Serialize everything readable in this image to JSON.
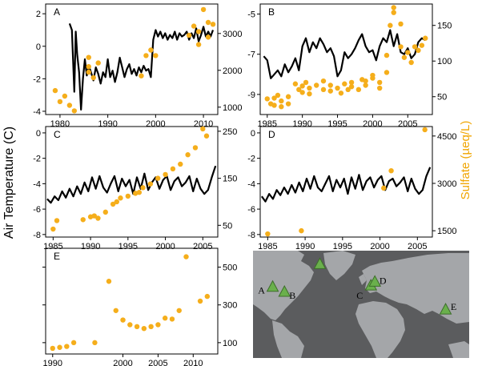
{
  "y_label_left": "Air Temperature (C)",
  "y_label_right": "Sulfate (µeq/L)",
  "colors": {
    "temperature": "#000000",
    "sulfate": "#f5ae1b",
    "map_land": "#a7a9ac",
    "map_ocean": "#58595b",
    "site_marker": "#6ab04c"
  },
  "chart_data": [
    {
      "type": "line+scatter",
      "panel": "A",
      "xlim": [
        1977,
        2013
      ],
      "x_ticks": [
        1980,
        1990,
        2000,
        2010
      ],
      "temp_ylim": [
        -4.2,
        2.6
      ],
      "temp_ticks": [
        -4,
        -2,
        0,
        2
      ],
      "sulfate_ylim": [
        800,
        3800
      ],
      "sulfate_ticks": [
        1000,
        2000,
        3000
      ],
      "temperature": {
        "x": [
          1982,
          1982.5,
          1983,
          1983.3,
          1983.6,
          1984,
          1984.4,
          1984.8,
          1985.2,
          1985.6,
          1986,
          1986.5,
          1987,
          1987.5,
          1988,
          1988.5,
          1989,
          1989.5,
          1990,
          1990.5,
          1991,
          1991.5,
          1992,
          1992.5,
          1993,
          1993.5,
          1994,
          1994.5,
          1995,
          1995.5,
          1996,
          1996.5,
          1997,
          1997.5,
          1998,
          1998.5,
          1999,
          1999.5,
          2000,
          2000.5,
          2001,
          2001.5,
          2002,
          2002.5,
          2003,
          2003.5,
          2004,
          2004.5,
          2005,
          2005.5,
          2006,
          2006.5,
          2007,
          2007.5,
          2008,
          2008.5,
          2009,
          2009.5,
          2010,
          2010.5,
          2011,
          2011.5,
          2012
        ],
        "y": [
          1.4,
          1.0,
          -2.8,
          0.9,
          -0.5,
          -1.6,
          -3.9,
          -2.0,
          -0.8,
          -1.8,
          -1.2,
          -1.6,
          -2.1,
          -1.3,
          -1.7,
          -2.3,
          -1.6,
          -1.9,
          -0.8,
          -1.9,
          -1.5,
          -2.2,
          -1.6,
          -0.7,
          -1.3,
          -1.9,
          -1.4,
          -1.1,
          -1.7,
          -1.4,
          -1.8,
          -1.3,
          -1.6,
          -1.2,
          -1.5,
          -1.4,
          -1.9,
          0.4,
          1.0,
          0.6,
          0.9,
          0.5,
          0.8,
          0.4,
          0.7,
          0.5,
          0.9,
          0.4,
          0.8,
          0.6,
          0.7,
          0.9,
          0.4,
          0.8,
          0.5,
          1.1,
          0.3,
          0.7,
          1.2,
          0.6,
          0.9,
          0.6,
          1.0
        ]
      },
      "sulfate": {
        "x": [
          1979,
          1980,
          1981,
          1982,
          1983,
          1986,
          1986,
          1986,
          1987,
          1988,
          1997,
          1998,
          1999,
          2000,
          2007,
          2008,
          2009,
          2009,
          2010,
          2011,
          2011,
          2012
        ],
        "y": [
          1450,
          1150,
          1300,
          1050,
          900,
          2350,
          2100,
          1950,
          1800,
          2200,
          1850,
          2400,
          2550,
          2400,
          2950,
          3200,
          3050,
          2700,
          3650,
          3300,
          2900,
          3250
        ]
      }
    },
    {
      "type": "line+scatter",
      "panel": "B",
      "xlim": [
        1984,
        2008.5
      ],
      "x_ticks": [
        1985,
        1990,
        1995,
        2000,
        2005
      ],
      "temp_ylim": [
        -10,
        -4.5
      ],
      "temp_ticks": [
        -9,
        -7,
        -5
      ],
      "sulfate_ylim": [
        25,
        180
      ],
      "sulfate_ticks": [
        50,
        100,
        150
      ],
      "temperature": {
        "x": [
          1984.5,
          1985,
          1985.5,
          1986,
          1986.5,
          1987,
          1987.5,
          1988,
          1988.5,
          1989,
          1989.5,
          1990,
          1990.5,
          1991,
          1991.5,
          1992,
          1992.5,
          1993,
          1993.5,
          1994,
          1994.5,
          1995,
          1995.5,
          1996,
          1996.5,
          1997,
          1997.5,
          1998,
          1998.5,
          1999,
          1999.5,
          2000,
          2000.5,
          2001,
          2001.5,
          2002,
          2002.5,
          2003,
          2003.5,
          2004,
          2004.5,
          2005,
          2005.5,
          2006,
          2006.5,
          2007,
          2007.5
        ],
        "y": [
          -7.1,
          -7.3,
          -8.2,
          -8.0,
          -7.8,
          -8.1,
          -7.5,
          -7.9,
          -7.6,
          -7.2,
          -7.8,
          -6.6,
          -6.2,
          -6.9,
          -6.4,
          -6.7,
          -6.2,
          -6.5,
          -6.9,
          -6.7,
          -7.1,
          -8.1,
          -7.8,
          -6.9,
          -7.2,
          -7.0,
          -6.7,
          -6.3,
          -6.0,
          -6.6,
          -6.9,
          -6.8,
          -7.3,
          -6.6,
          -6.2,
          -6.4,
          -5.8,
          -6.6,
          -6.0,
          -6.9,
          -7.0,
          -6.7,
          -7.2,
          -7.0,
          -6.4,
          -6.2,
          -6.3
        ]
      },
      "sulfate": {
        "x": [
          1985,
          1985.5,
          1986,
          1986,
          1986.5,
          1987,
          1987,
          1988,
          1988,
          1989,
          1989.5,
          1990,
          1990,
          1990.5,
          1991,
          1991,
          1992,
          1993,
          1993,
          1994,
          1994,
          1995,
          1995.5,
          1996,
          1996.5,
          1997,
          1997,
          1998,
          1998.5,
          1999,
          1999,
          2000,
          2000,
          2001,
          2001,
          2002,
          2002,
          2002.5,
          2003,
          2003,
          2004,
          2004,
          2004.5,
          2005,
          2005.5,
          2006,
          2006.5,
          2007,
          2007.5
        ],
        "y": [
          47,
          40,
          48,
          38,
          52,
          44,
          36,
          50,
          40,
          68,
          60,
          65,
          56,
          70,
          62,
          54,
          66,
          60,
          72,
          58,
          66,
          62,
          55,
          68,
          60,
          70,
          64,
          60,
          74,
          66,
          72,
          76,
          80,
          62,
          70,
          84,
          108,
          150,
          175,
          168,
          152,
          120,
          105,
          112,
          98,
          120,
          115,
          122,
          132
        ]
      }
    },
    {
      "type": "line+scatter",
      "panel": "C",
      "xlim": [
        1984,
        2007
      ],
      "x_ticks": [
        1985,
        1990,
        1995,
        2000,
        2005
      ],
      "temp_ylim": [
        -8.2,
        0.5
      ],
      "temp_ticks": [
        -8,
        -6,
        -4,
        -2,
        0
      ],
      "sulfate_ylim": [
        25,
        260
      ],
      "sulfate_ticks": [
        50,
        150,
        250
      ],
      "temperature": {
        "x": [
          1984.2,
          1984.7,
          1985.2,
          1985.7,
          1986.2,
          1986.7,
          1987.2,
          1987.7,
          1988.2,
          1988.7,
          1989.2,
          1989.7,
          1990.2,
          1990.7,
          1991.2,
          1991.7,
          1992.2,
          1992.7,
          1993.2,
          1993.7,
          1994.2,
          1994.7,
          1995.2,
          1995.7,
          1996.2,
          1996.7,
          1997.2,
          1997.7,
          1998.2,
          1998.7,
          1999.2,
          1999.7,
          2000.2,
          2000.7,
          2001.2,
          2001.7,
          2002.2,
          2002.7,
          2003.2,
          2003.7,
          2004.2,
          2004.7,
          2005.2,
          2005.7,
          2006.2,
          2006.7
        ],
        "y": [
          -5.2,
          -5.5,
          -5.0,
          -5.3,
          -4.6,
          -5.1,
          -4.4,
          -5.0,
          -4.2,
          -4.8,
          -3.9,
          -4.6,
          -3.5,
          -4.4,
          -3.4,
          -4.3,
          -4.7,
          -4.0,
          -3.4,
          -4.6,
          -3.6,
          -4.2,
          -3.7,
          -4.8,
          -3.5,
          -4.4,
          -3.2,
          -4.5,
          -3.9,
          -3.5,
          -4.4,
          -3.7,
          -3.4,
          -4.5,
          -3.8,
          -3.5,
          -4.2,
          -3.9,
          -3.4,
          -4.6,
          -3.6,
          -4.4,
          -4.8,
          -4.5,
          -3.5,
          -2.6
        ]
      },
      "sulfate": {
        "x": [
          1985,
          1985.5,
          1989,
          1990,
          1990.5,
          1991,
          1992,
          1993,
          1993.5,
          1994,
          1995,
          1996,
          1996.5,
          1997,
          1998,
          1999,
          2000,
          2001,
          2002,
          2003,
          2004,
          2005,
          2005.5
        ],
        "y": [
          42,
          60,
          62,
          68,
          70,
          65,
          78,
          95,
          100,
          108,
          112,
          118,
          120,
          130,
          138,
          150,
          158,
          170,
          180,
          200,
          215,
          255,
          240
        ]
      }
    },
    {
      "type": "line+scatter",
      "panel": "D",
      "xlim": [
        1984,
        2007
      ],
      "x_ticks": [
        1985,
        1990,
        1995,
        2000,
        2005
      ],
      "temp_ylim": [
        -8.2,
        0.5
      ],
      "temp_ticks": [
        -8,
        -6,
        -4,
        -2,
        0
      ],
      "sulfate_ylim": [
        1300,
        4800
      ],
      "sulfate_ticks": [
        1500,
        3000,
        4500
      ],
      "temperature": {
        "x": [
          1984.2,
          1984.7,
          1985.2,
          1985.7,
          1986.2,
          1986.7,
          1987.2,
          1987.7,
          1988.2,
          1988.7,
          1989.2,
          1989.7,
          1990.2,
          1990.7,
          1991.2,
          1991.7,
          1992.2,
          1992.7,
          1993.2,
          1993.7,
          1994.2,
          1994.7,
          1995.2,
          1995.7,
          1996.2,
          1996.7,
          1997.2,
          1997.7,
          1998.2,
          1998.7,
          1999.2,
          1999.7,
          2000.2,
          2000.7,
          2001.2,
          2001.7,
          2002.2,
          2002.7,
          2003.2,
          2003.7,
          2004.2,
          2004.7,
          2005.2,
          2005.7,
          2006.2,
          2006.7
        ],
        "y": [
          -5.0,
          -5.4,
          -4.8,
          -5.2,
          -4.5,
          -4.9,
          -4.3,
          -4.8,
          -4.1,
          -4.7,
          -3.9,
          -4.6,
          -3.6,
          -4.4,
          -3.4,
          -4.3,
          -4.6,
          -4.0,
          -3.4,
          -4.6,
          -3.7,
          -4.3,
          -3.6,
          -4.8,
          -3.5,
          -4.4,
          -3.3,
          -4.5,
          -3.8,
          -3.5,
          -4.3,
          -3.7,
          -3.4,
          -4.5,
          -3.8,
          -3.6,
          -4.2,
          -3.9,
          -3.5,
          -4.6,
          -3.6,
          -4.4,
          -4.8,
          -4.5,
          -3.4,
          -2.7
        ]
      },
      "sulfate": {
        "x": [
          1985,
          1989.5,
          2000.5,
          2001.5,
          2006
        ],
        "y": [
          1400,
          1500,
          2850,
          3400,
          4700
        ]
      }
    },
    {
      "type": "scatter",
      "panel": "E",
      "xlim": [
        1989,
        2013.5
      ],
      "x_ticks": [
        1990,
        2000,
        2005,
        2010
      ],
      "sulfate_ylim": [
        40,
        600
      ],
      "sulfate_ticks": [
        100,
        300,
        500
      ],
      "sulfate": {
        "x": [
          1990,
          1991,
          1992,
          1993,
          1996,
          1998,
          1999,
          2000,
          2001,
          2002,
          2003,
          2004,
          2005,
          2006,
          2007,
          2008,
          2009,
          2011,
          2012
        ],
        "y": [
          70,
          75,
          80,
          100,
          100,
          425,
          270,
          220,
          195,
          185,
          175,
          185,
          195,
          230,
          225,
          270,
          555,
          320,
          345
        ]
      }
    }
  ],
  "map": {
    "sites": [
      {
        "label": "A",
        "lon": -90,
        "lat": 46
      },
      {
        "label": "B",
        "lon": -78,
        "lat": 42
      },
      {
        "label": "",
        "lon": -42,
        "lat": 64
      },
      {
        "label": "C",
        "lon": 10,
        "lat": 47
      },
      {
        "label": "D",
        "lon": 14,
        "lat": 50
      },
      {
        "label": "E",
        "lon": 86,
        "lat": 28
      }
    ]
  }
}
